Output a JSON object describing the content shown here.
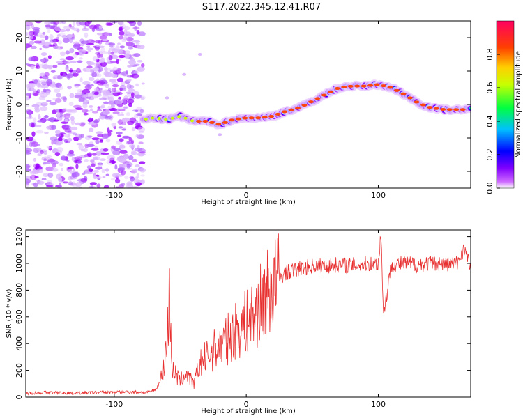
{
  "title": "S117.2022.345.12.41.R07",
  "chart_data": [
    {
      "type": "heatmap",
      "xlabel": "Height of straight line (km)",
      "ylabel": "Frequency (Hz)",
      "xlim": [
        -167,
        170
      ],
      "ylim": [
        -25,
        25
      ],
      "xticks": [
        -100,
        0,
        100
      ],
      "yticks": [
        -20,
        -10,
        0,
        10,
        20
      ],
      "noise_region_x": [
        -167,
        -78
      ],
      "ridge": {
        "x": [
          -78,
          -70,
          -60,
          -50,
          -40,
          -30,
          -20,
          -10,
          0,
          10,
          20,
          30,
          40,
          50,
          60,
          70,
          80,
          90,
          100,
          110,
          120,
          130,
          140,
          150,
          160,
          170
        ],
        "y": [
          -4.5,
          -4,
          -4.5,
          -3.5,
          -5,
          -5,
          -6,
          -4.5,
          -4,
          -4,
          -3.5,
          -2,
          -1,
          1,
          3,
          5,
          5.5,
          5.5,
          6,
          5,
          3,
          0.5,
          -1,
          -1.5,
          -1.5,
          -1.5
        ]
      },
      "colorbar": {
        "label": "Normalized spectral amplitude",
        "range": [
          0,
          1
        ],
        "ticks": [
          "0.0",
          "0.2",
          "0.4",
          "0.6",
          "0.8"
        ],
        "colormap": [
          "#ffffff",
          "#9a00ff",
          "#0000ff",
          "#00c8ff",
          "#00ff40",
          "#c8ff00",
          "#ffc800",
          "#ff4000",
          "#ff0060"
        ]
      },
      "grid": false
    },
    {
      "type": "line",
      "xlabel": "Height of straight line (km)",
      "ylabel": "SNR (10 * v/v)",
      "xlim": [
        -167,
        170
      ],
      "ylim": [
        0,
        1250
      ],
      "xticks": [
        -100,
        0,
        100
      ],
      "yticks": [
        0,
        200,
        400,
        600,
        800,
        1000,
        1200
      ],
      "series": [
        {
          "color": "#e83030",
          "x": [
            -167,
            -150,
            -130,
            -110,
            -90,
            -75,
            -68,
            -63,
            -60,
            -58,
            -56,
            -50,
            -45,
            -40,
            -35,
            -30,
            -25,
            -20,
            -15,
            -10,
            -5,
            0,
            5,
            10,
            15,
            20,
            25,
            30,
            40,
            50,
            60,
            70,
            80,
            90,
            100,
            102,
            104,
            110,
            120,
            130,
            140,
            150,
            160,
            165,
            170
          ],
          "y": [
            30,
            35,
            30,
            35,
            40,
            35,
            60,
            180,
            420,
            760,
            200,
            120,
            180,
            90,
            250,
            300,
            350,
            380,
            420,
            480,
            520,
            560,
            600,
            680,
            760,
            820,
            880,
            930,
            960,
            980,
            980,
            990,
            985,
            995,
            1000,
            1230,
            620,
            990,
            1000,
            990,
            1000,
            995,
            1000,
            1120,
            960
          ]
        }
      ],
      "grid": false
    }
  ]
}
